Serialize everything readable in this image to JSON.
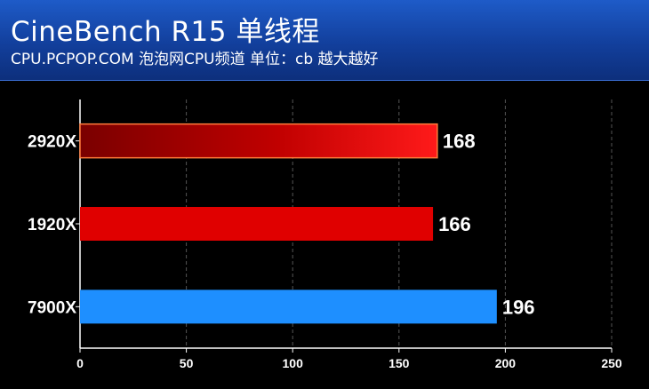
{
  "header": {
    "title": "CineBench R15 单线程",
    "subtitle": "CPU.PCPOP.COM 泡泡网CPU频道 单位：cb 越大越好"
  },
  "chart_data": {
    "type": "bar",
    "orientation": "horizontal",
    "categories": [
      "2920X",
      "1920X",
      "7900X"
    ],
    "values": [
      168,
      166,
      196
    ],
    "value_labels": [
      "168",
      "166",
      "196"
    ],
    "xlim": [
      0,
      250
    ],
    "x_ticks": [
      0,
      50,
      100,
      150,
      200,
      250
    ],
    "x_tick_labels": [
      "0",
      "50",
      "100",
      "150",
      "200",
      "250"
    ],
    "grid": "vertical dashed",
    "bar_colors": [
      "#c40000",
      "#e00000",
      "#1e8fff"
    ]
  }
}
